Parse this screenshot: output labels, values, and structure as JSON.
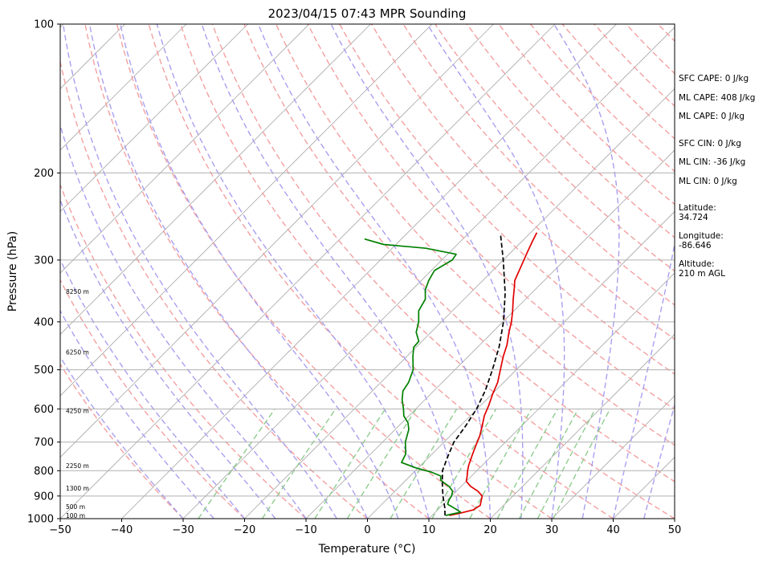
{
  "chart_data": {
    "type": "line",
    "title": "2023/04/15 07:43 MPR Sounding",
    "xlabel": "Temperature (°C)",
    "ylabel": "Pressure (hPa)",
    "xlim": [
      -50,
      50
    ],
    "ylim": [
      1000,
      100
    ],
    "yscale": "log",
    "grid": true,
    "x_ticks": [
      "−50",
      "−40",
      "−30",
      "−20",
      "−10",
      "0",
      "10",
      "20",
      "30",
      "40",
      "50"
    ],
    "x_tick_values": [
      -50,
      -40,
      -30,
      -20,
      -10,
      0,
      10,
      20,
      30,
      40,
      50
    ],
    "y_ticks": [
      "100",
      "200",
      "300",
      "400",
      "500",
      "600",
      "700",
      "800",
      "900",
      "1000"
    ],
    "y_tick_values": [
      100,
      200,
      300,
      400,
      500,
      600,
      700,
      800,
      900,
      1000
    ],
    "height_labels": [
      {
        "text": "100 m",
        "pressure": 985
      },
      {
        "text": "500 m",
        "pressure": 945
      },
      {
        "text": "1300 m",
        "pressure": 868
      },
      {
        "text": "2250 m",
        "pressure": 782
      },
      {
        "text": "4250 m",
        "pressure": 605
      },
      {
        "text": "6250 m",
        "pressure": 460
      },
      {
        "text": "8250 m",
        "pressure": 347
      }
    ],
    "series": [
      {
        "color": "#e00000",
        "style": "solid",
        "points": [
          [
            985,
            12.8
          ],
          [
            975,
            14.2
          ],
          [
            960,
            15.8
          ],
          [
            940,
            16.2
          ],
          [
            920,
            15.6
          ],
          [
            900,
            15.0
          ],
          [
            880,
            13.5
          ],
          [
            860,
            11.5
          ],
          [
            840,
            10.0
          ],
          [
            820,
            9.3
          ],
          [
            800,
            8.5
          ],
          [
            780,
            7.8
          ],
          [
            760,
            7.2
          ],
          [
            740,
            6.6
          ],
          [
            720,
            6.0
          ],
          [
            700,
            5.4
          ],
          [
            680,
            4.8
          ],
          [
            650,
            3.6
          ],
          [
            620,
            2.3
          ],
          [
            590,
            1.3
          ],
          [
            560,
            0.1
          ],
          [
            530,
            -1.0
          ],
          [
            500,
            -2.6
          ],
          [
            470,
            -4.3
          ],
          [
            445,
            -5.6
          ],
          [
            420,
            -7.3
          ],
          [
            400,
            -8.6
          ],
          [
            380,
            -10.2
          ],
          [
            360,
            -12.0
          ],
          [
            340,
            -13.8
          ],
          [
            330,
            -14.8
          ],
          [
            310,
            -16.0
          ],
          [
            290,
            -17.3
          ],
          [
            275,
            -18.3
          ],
          [
            264,
            -19.0
          ]
        ]
      },
      {
        "color": "#008000",
        "style": "solid",
        "points": [
          [
            985,
            12.2
          ],
          [
            970,
            14.1
          ],
          [
            955,
            12.7
          ],
          [
            935,
            10.7
          ],
          [
            915,
            10.2
          ],
          [
            900,
            10.0
          ],
          [
            880,
            9.4
          ],
          [
            860,
            8.0
          ],
          [
            845,
            6.5
          ],
          [
            835,
            5.6
          ],
          [
            820,
            5.0
          ],
          [
            805,
            2.8
          ],
          [
            790,
            -0.3
          ],
          [
            770,
            -3.6
          ],
          [
            740,
            -4.3
          ],
          [
            700,
            -6.3
          ],
          [
            660,
            -7.8
          ],
          [
            640,
            -9.0
          ],
          [
            620,
            -10.8
          ],
          [
            600,
            -12.0
          ],
          [
            575,
            -13.7
          ],
          [
            552,
            -15.0
          ],
          [
            530,
            -15.5
          ],
          [
            500,
            -16.8
          ],
          [
            470,
            -19.0
          ],
          [
            450,
            -20.4
          ],
          [
            438,
            -20.5
          ],
          [
            420,
            -22.4
          ],
          [
            400,
            -23.7
          ],
          [
            380,
            -25.5
          ],
          [
            360,
            -26.3
          ],
          [
            345,
            -27.8
          ],
          [
            330,
            -28.8
          ],
          [
            315,
            -29.5
          ],
          [
            300,
            -28.3
          ],
          [
            292,
            -28.6
          ],
          [
            284,
            -34.5
          ],
          [
            279,
            -42.0
          ],
          [
            272,
            -46.0
          ]
        ]
      },
      {
        "color": "#000000",
        "style": "dashed",
        "points": [
          [
            985,
            12.1
          ],
          [
            950,
            10.8
          ],
          [
            900,
            8.6
          ],
          [
            850,
            6.5
          ],
          [
            800,
            4.4
          ],
          [
            750,
            3.0
          ],
          [
            700,
            1.6
          ],
          [
            650,
            0.9
          ],
          [
            600,
            -0.1
          ],
          [
            550,
            -1.7
          ],
          [
            500,
            -3.9
          ],
          [
            450,
            -6.5
          ],
          [
            400,
            -9.9
          ],
          [
            350,
            -14.3
          ],
          [
            300,
            -20.0
          ],
          [
            265,
            -24.8
          ]
        ]
      }
    ]
  },
  "panel": {
    "sfc_cape": "SFC CAPE: 0 J/kg",
    "ml_cape_1": "ML CAPE: 408 J/kg",
    "ml_cape_2": "ML CAPE: 0 J/kg",
    "sfc_cin": "SFC CIN: 0 J/kg",
    "ml_cin_1": "ML CIN: -36 J/kg",
    "ml_cin_2": "ML CIN: 0 J/kg",
    "lat_label": "Latitude:",
    "lat_value": "34.724",
    "lon_label": "Longitude:",
    "lon_value": "-86.646",
    "alt_label": "Altitude:",
    "alt_value": "210 m AGL"
  },
  "colors": {
    "temperature": "#e00000",
    "dewpoint": "#008000",
    "parcel": "#000000",
    "dry_adiabat": "#f4a0a0",
    "moist_adiabat": "#a9a0f0",
    "mixing_ratio": "#8fcc8f",
    "isotherm": "#a8a8a8"
  }
}
